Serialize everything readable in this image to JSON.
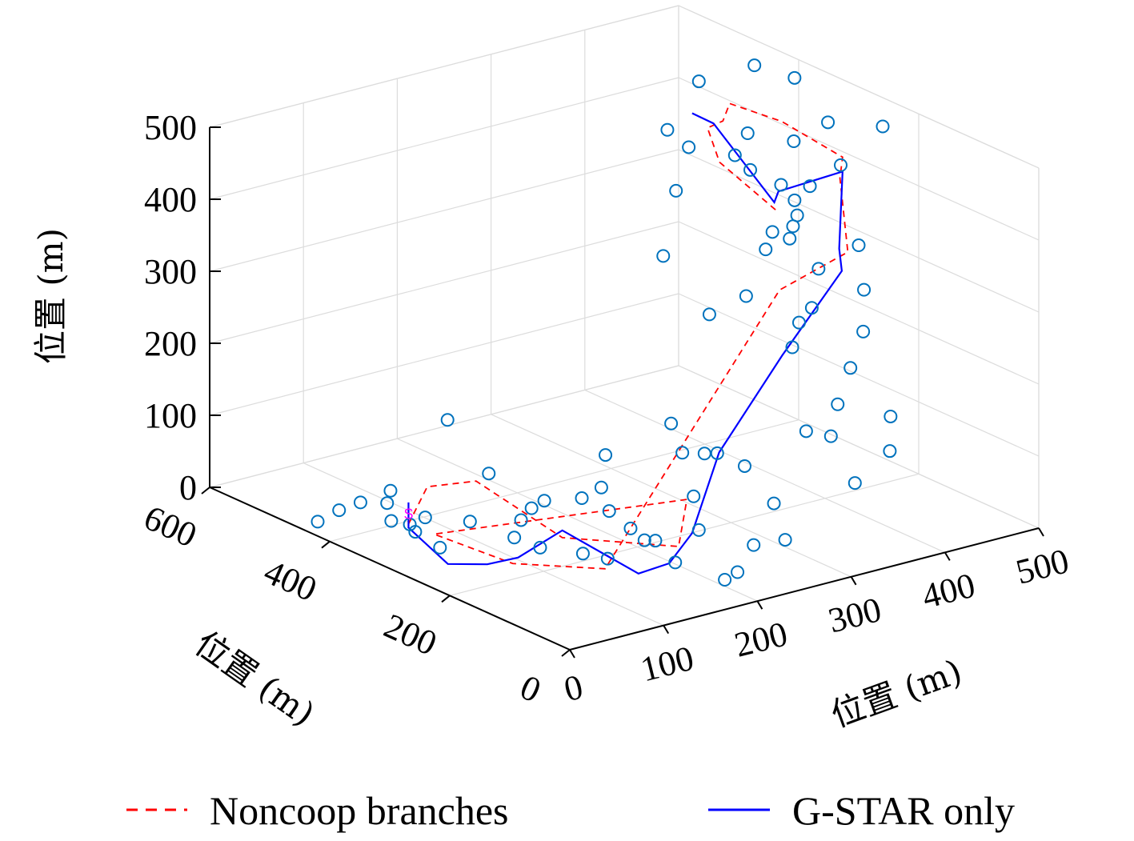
{
  "chart_data": {
    "type": "scatter",
    "view": "3d",
    "axes": {
      "x": {
        "label": "位置 (m)",
        "range": [
          0,
          500
        ],
        "ticks": [
          0,
          100,
          200,
          300,
          400,
          500
        ]
      },
      "y": {
        "label": "位置 (m)",
        "range": [
          0,
          600
        ],
        "ticks": [
          0,
          200,
          400,
          600
        ]
      },
      "z": {
        "label": "位置 (m)",
        "range": [
          0,
          500
        ],
        "ticks": [
          0,
          100,
          200,
          300,
          400,
          500
        ]
      }
    },
    "grid": true,
    "legend_position": "bottom",
    "series": [
      {
        "name": "Noncoop branches",
        "kind": "line",
        "style": "dashed",
        "color": "#ff0000",
        "points": [
          [
            20,
            300,
            55
          ],
          [
            40,
            300,
            100
          ],
          [
            60,
            250,
            120
          ],
          [
            120,
            200,
            40
          ],
          [
            180,
            100,
            45
          ],
          [
            240,
            180,
            60
          ],
          [
            60,
            320,
            20
          ],
          [
            80,
            220,
            10
          ],
          [
            140,
            160,
            5
          ],
          [
            390,
            260,
            270
          ],
          [
            450,
            240,
            310
          ],
          [
            480,
            300,
            380
          ],
          [
            470,
            280,
            420
          ],
          [
            450,
            350,
            450
          ],
          [
            420,
            390,
            470
          ],
          [
            400,
            370,
            460
          ],
          [
            390,
            380,
            450
          ],
          [
            390,
            360,
            410
          ],
          [
            420,
            310,
            350
          ]
        ]
      },
      {
        "name": "G-STAR only",
        "kind": "line",
        "style": "solid",
        "color": "#0000ff",
        "points": [
          [
            20,
            300,
            85
          ],
          [
            20,
            300,
            50
          ],
          [
            30,
            250,
            15
          ],
          [
            40,
            200,
            30
          ],
          [
            60,
            180,
            40
          ],
          [
            120,
            200,
            50
          ],
          [
            150,
            120,
            10
          ],
          [
            170,
            100,
            25
          ],
          [
            220,
            140,
            35
          ],
          [
            300,
            220,
            90
          ],
          [
            380,
            240,
            190
          ],
          [
            450,
            250,
            280
          ],
          [
            460,
            270,
            300
          ],
          [
            470,
            280,
            400
          ],
          [
            440,
            340,
            360
          ],
          [
            410,
            300,
            370
          ],
          [
            390,
            370,
            460
          ],
          [
            380,
            390,
            470
          ]
        ]
      },
      {
        "name": "",
        "kind": "markers",
        "marker": "circle",
        "color": "#0072bd",
        "points": [
          [
            10,
            320,
            80
          ],
          [
            15,
            290,
            60
          ],
          [
            25,
            280,
            70
          ],
          [
            20,
            330,
            90
          ],
          [
            40,
            320,
            30
          ],
          [
            60,
            260,
            60
          ],
          [
            80,
            260,
            120
          ],
          [
            100,
            220,
            80
          ],
          [
            120,
            230,
            80
          ],
          [
            160,
            230,
            70
          ],
          [
            170,
            200,
            60
          ],
          [
            180,
            180,
            40
          ],
          [
            200,
            170,
            20
          ],
          [
            240,
            160,
            25
          ],
          [
            260,
            200,
            50
          ],
          [
            280,
            250,
            85
          ],
          [
            300,
            300,
            100
          ],
          [
            310,
            260,
            70
          ],
          [
            330,
            270,
            60
          ],
          [
            340,
            240,
            50
          ],
          [
            320,
            160,
            35
          ],
          [
            300,
            110,
            10
          ],
          [
            260,
            100,
            20
          ],
          [
            230,
            80,
            0
          ],
          [
            210,
            70,
            0
          ],
          [
            170,
            90,
            30
          ],
          [
            150,
            110,
            60
          ],
          [
            130,
            140,
            30
          ],
          [
            110,
            150,
            40
          ],
          [
            90,
            190,
            40
          ],
          [
            60,
            310,
            5
          ],
          [
            40,
            360,
            30
          ],
          [
            20,
            380,
            55
          ],
          [
            10,
            400,
            40
          ],
          [
            0,
            420,
            20
          ],
          [
            380,
            200,
            100
          ],
          [
            400,
            190,
            90
          ],
          [
            420,
            210,
            120
          ],
          [
            440,
            220,
            160
          ],
          [
            460,
            230,
            200
          ],
          [
            480,
            260,
            240
          ],
          [
            500,
            300,
            280
          ],
          [
            470,
            320,
            250
          ],
          [
            450,
            300,
            210
          ],
          [
            430,
            290,
            200
          ],
          [
            410,
            270,
            180
          ],
          [
            420,
            330,
            290
          ],
          [
            440,
            350,
            300
          ],
          [
            460,
            340,
            320
          ],
          [
            470,
            360,
            330
          ],
          [
            480,
            350,
            350
          ],
          [
            500,
            330,
            380
          ],
          [
            430,
            320,
            380
          ],
          [
            410,
            340,
            400
          ],
          [
            400,
            350,
            420
          ],
          [
            420,
            360,
            440
          ],
          [
            450,
            330,
            430
          ],
          [
            480,
            320,
            450
          ],
          [
            430,
            300,
            330
          ],
          [
            420,
            290,
            320
          ],
          [
            370,
            380,
            430
          ],
          [
            360,
            400,
            450
          ],
          [
            400,
            410,
            500
          ],
          [
            440,
            380,
            520
          ],
          [
            470,
            360,
            500
          ],
          [
            500,
            260,
            460
          ],
          [
            350,
            370,
            380
          ],
          [
            330,
            360,
            300
          ],
          [
            380,
            300,
            250
          ],
          [
            360,
            330,
            220
          ],
          [
            200,
            260,
            60
          ],
          [
            230,
            300,
            80
          ],
          [
            400,
            150,
            40
          ],
          [
            450,
            170,
            60
          ],
          [
            470,
            200,
            90
          ],
          [
            140,
            300,
            20
          ],
          [
            120,
            280,
            10
          ],
          [
            100,
            360,
            150
          ]
        ]
      }
    ],
    "start_marker": {
      "label": "S",
      "color": "#ff00ff",
      "point": [
        20,
        300,
        70
      ]
    }
  },
  "legend": {
    "items": [
      {
        "label": "Noncoop branches",
        "color": "#ff0000",
        "style": "dashed"
      },
      {
        "label": "G-STAR only",
        "color": "#0000ff",
        "style": "solid"
      }
    ]
  }
}
